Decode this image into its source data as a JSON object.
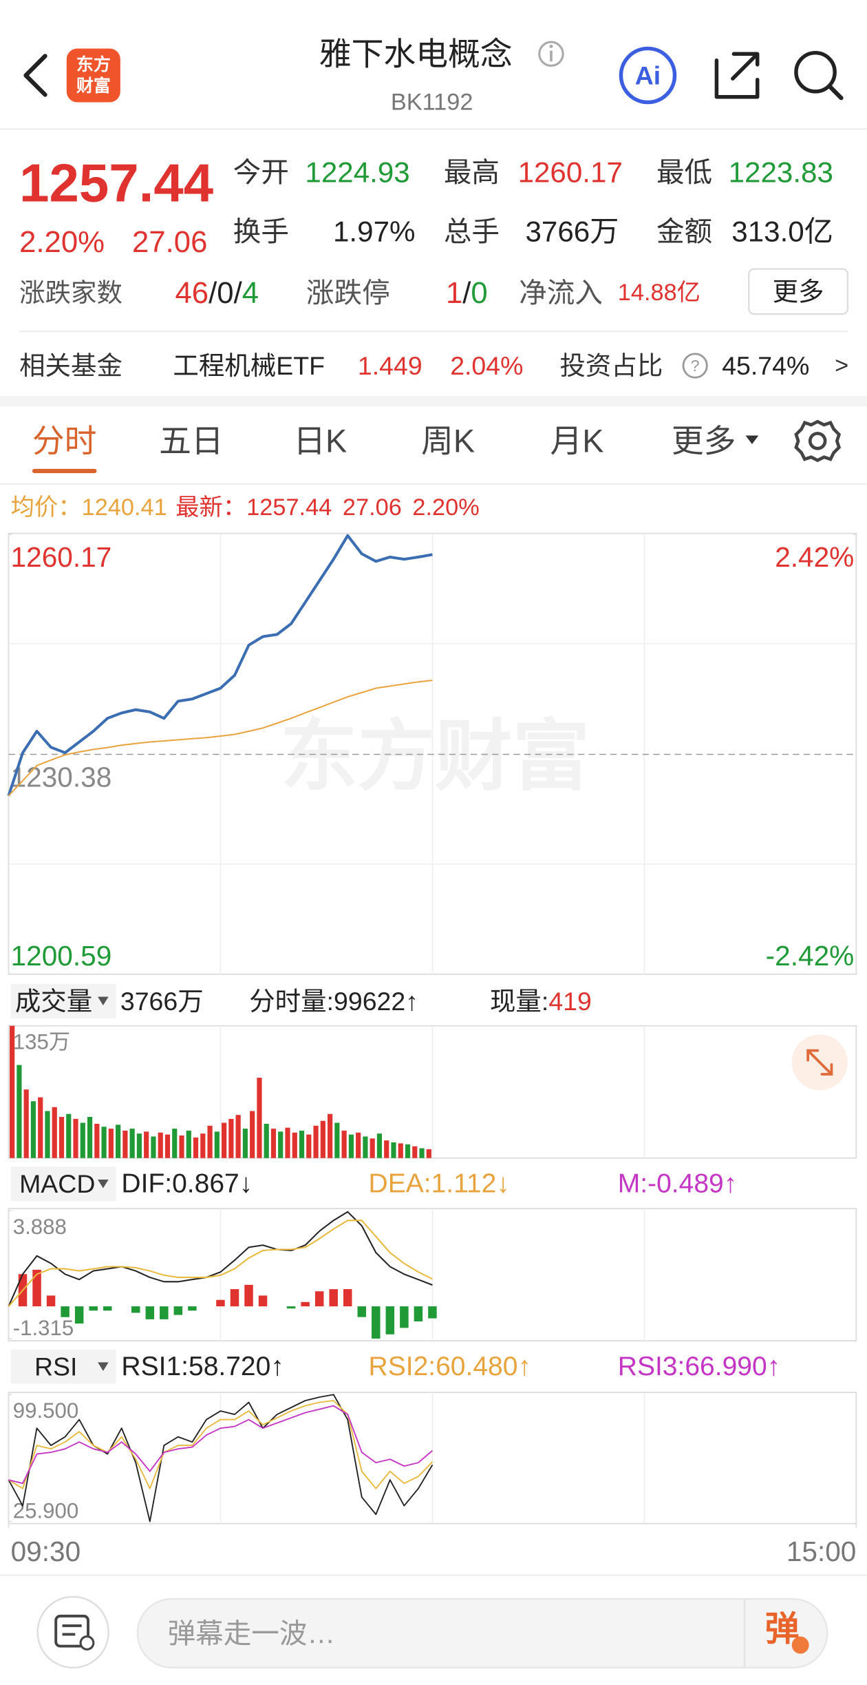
{
  "header": {
    "title": "雅下水电概念",
    "code": "BK1192",
    "logo": [
      "东方",
      "财富"
    ],
    "ai": "Ai"
  },
  "quote": {
    "price": "1257.44",
    "change_pct": "2.20%",
    "change": "27.06",
    "stats": [
      {
        "label": "今开",
        "value": "1224.93",
        "color": "#1f9a36"
      },
      {
        "label": "最高",
        "value": "1260.17",
        "color": "#e0322e"
      },
      {
        "label": "最低",
        "value": "1223.83",
        "color": "#1f9a36"
      },
      {
        "label": "换手",
        "value": "1.97%",
        "color": "#222222"
      },
      {
        "label": "总手",
        "value": "3766万",
        "color": "#222222"
      },
      {
        "label": "金额",
        "value": "313.0亿",
        "color": "#222222"
      }
    ],
    "breadth": {
      "label": "涨跌家数",
      "up": "46",
      "sep": "/",
      "flat": "0",
      "down": "4"
    },
    "limit": {
      "label": "涨跌停",
      "up": "1",
      "sep": "/",
      "down": "0"
    },
    "netflow": {
      "label": "净流入",
      "value": "14.88亿"
    },
    "more": "更多"
  },
  "fund": {
    "label": "相关基金",
    "name": "工程机械ETF",
    "price": "1.449",
    "change": "2.04%",
    "ratio_label": "投资占比",
    "ratio_help": "?",
    "ratio": "45.74%",
    "arrow": ">"
  },
  "tabs": {
    "items": [
      "分时",
      "五日",
      "日K",
      "周K",
      "月K",
      "更多"
    ],
    "selected": 0
  },
  "summary": {
    "avg_label": "均价：",
    "avg": "1240.41",
    "last_label": "最新：",
    "last": "1257.44",
    "change": "27.06",
    "change_pct": "2.20%"
  },
  "watermark": "东方财富",
  "chart_data": [
    {
      "type": "line",
      "x": [
        0,
        4,
        8,
        12,
        16,
        20,
        24,
        28,
        32,
        36,
        40,
        44,
        48,
        52,
        56,
        60,
        64,
        68,
        72,
        76,
        80,
        84,
        88,
        92,
        96,
        100,
        104,
        108,
        112,
        116,
        120
      ],
      "xlim": [
        0,
        240
      ],
      "xticks": [
        {
          "value": 0,
          "label": "09:30"
        },
        {
          "value": 240,
          "label": "15:00"
        }
      ],
      "series": [
        {
          "color": "#3b6db3",
          "values": [
            1224.77,
            1230.6,
            1233.51,
            1231.33,
            1230.6,
            1232.06,
            1233.51,
            1235.26,
            1235.99,
            1236.43,
            1236.13,
            1235.26,
            1237.59,
            1237.88,
            1238.61,
            1239.34,
            1241.09,
            1245.17,
            1246.33,
            1246.62,
            1248.08,
            1250.99,
            1253.9,
            1256.82,
            1260.02,
            1257.55,
            1256.53,
            1257.11,
            1256.82,
            1257.11,
            1257.44
          ]
        },
        {
          "color": "#e8a33c",
          "values": [
            1224.77,
            1226.8,
            1228.85,
            1229.6,
            1230.31,
            1230.7,
            1231.04,
            1231.3,
            1231.62,
            1231.85,
            1232.06,
            1232.2,
            1232.35,
            1232.5,
            1232.64,
            1232.85,
            1233.08,
            1233.5,
            1233.95,
            1234.6,
            1235.26,
            1236.0,
            1236.72,
            1237.45,
            1238.17,
            1238.75,
            1239.34,
            1239.63,
            1239.92,
            1240.2,
            1240.41
          ]
        }
      ],
      "ylim": [
        1200.59,
        1260.17
      ],
      "yticks": [
        1200.59,
        1230.38,
        1260.17
      ],
      "tick_colors": [
        "#1f9a36",
        "#888888",
        "#e0322e"
      ],
      "y2lim": [
        -2.42,
        2.42
      ],
      "y2ticks": [
        {
          "value": -2.42,
          "label": "-2.42%"
        },
        {
          "value": 2.42,
          "label": "2.42%"
        }
      ]
    },
    {
      "type": "bar",
      "title": "成交量",
      "total": "3766万",
      "minute": "分时量:99622↑",
      "now_label": "现量:",
      "now": "419",
      "x": [
        0,
        2,
        4,
        6,
        8,
        10,
        12,
        14,
        16,
        18,
        20,
        22,
        24,
        26,
        28,
        30,
        32,
        34,
        36,
        38,
        40,
        42,
        44,
        46,
        48,
        50,
        52,
        54,
        56,
        58,
        60,
        62,
        64,
        66,
        68,
        70,
        72,
        74,
        76,
        78,
        80,
        82,
        84,
        86,
        88,
        90,
        92,
        94,
        96,
        98,
        100,
        102,
        104,
        106,
        108,
        110,
        112,
        114,
        116,
        118
      ],
      "xlim": [
        0,
        240
      ],
      "values": [
        135,
        95,
        70,
        58,
        62,
        48,
        52,
        42,
        45,
        40,
        36,
        42,
        35,
        32,
        30,
        34,
        28,
        30,
        25,
        27,
        22,
        26,
        24,
        30,
        23,
        28,
        21,
        25,
        33,
        27,
        36,
        40,
        44,
        30,
        48,
        82,
        35,
        30,
        27,
        31,
        26,
        28,
        24,
        33,
        38,
        45,
        36,
        28,
        24,
        26,
        22,
        20,
        25,
        18,
        16,
        15,
        14,
        12,
        10,
        9
      ],
      "colors": [
        "#e0322e",
        "#1f9a36",
        "#e0322e",
        "#1f9a36",
        "#e0322e",
        "#1f9a36",
        "#e0322e",
        "#e0322e",
        "#1f9a36",
        "#e0322e",
        "#1f9a36",
        "#1f9a36",
        "#e0322e",
        "#1f9a36",
        "#e0322e",
        "#1f9a36",
        "#e0322e",
        "#1f9a36",
        "#1f9a36",
        "#e0322e",
        "#1f9a36",
        "#e0322e",
        "#e0322e",
        "#1f9a36",
        "#e0322e",
        "#1f9a36",
        "#e0322e",
        "#e0322e",
        "#e0322e",
        "#1f9a36",
        "#e0322e",
        "#e0322e",
        "#e0322e",
        "#1f9a36",
        "#e0322e",
        "#e0322e",
        "#1f9a36",
        "#e0322e",
        "#1f9a36",
        "#e0322e",
        "#e0322e",
        "#1f9a36",
        "#e0322e",
        "#e0322e",
        "#e0322e",
        "#e0322e",
        "#1f9a36",
        "#e0322e",
        "#1f9a36",
        "#e0322e",
        "#1f9a36",
        "#e0322e",
        "#1f9a36",
        "#e0322e",
        "#1f9a36",
        "#e0322e",
        "#1f9a36",
        "#e0322e",
        "#1f9a36",
        "#e0322e"
      ],
      "ylim": [
        0,
        135
      ],
      "yticks": [
        {
          "value": 135,
          "label": "135万"
        }
      ]
    },
    {
      "type": "macd",
      "title": "MACD",
      "x": [
        0,
        4,
        8,
        12,
        16,
        20,
        24,
        28,
        32,
        36,
        40,
        44,
        48,
        52,
        56,
        60,
        64,
        68,
        72,
        76,
        80,
        84,
        88,
        92,
        96,
        100,
        104,
        108,
        112,
        116,
        120
      ],
      "xlim": [
        0,
        240
      ],
      "series": [
        {
          "label": "DIF:0.867↓",
          "color": "#222222",
          "values": [
            -0.003,
            1.308,
            2.052,
            1.746,
            1.308,
            1.09,
            1.44,
            1.527,
            1.614,
            1.44,
            1.177,
            1.002,
            1.002,
            1.09,
            1.177,
            1.396,
            1.877,
            2.401,
            2.489,
            2.314,
            2.27,
            2.489,
            3.057,
            3.494,
            3.844,
            3.276,
            2.183,
            1.614,
            1.308,
            1.09,
            0.867
          ]
        },
        {
          "label": "DEA:1.112↓",
          "color": "#e8b93c",
          "values": [
            -0.003,
            0.653,
            1.308,
            1.527,
            1.527,
            1.44,
            1.527,
            1.614,
            1.614,
            1.571,
            1.44,
            1.265,
            1.177,
            1.177,
            1.177,
            1.265,
            1.527,
            1.964,
            2.27,
            2.314,
            2.314,
            2.401,
            2.751,
            3.145,
            3.494,
            3.494,
            2.839,
            2.183,
            1.746,
            1.396,
            1.112
          ]
        },
        {
          "label": "M:-0.489↑",
          "color": "#c535c5",
          "up_color": "#e0322e",
          "down_color": "#1f9a36",
          "values": [
            0,
            1.31,
            1.488,
            0.438,
            -0.438,
            -0.7,
            -0.174,
            -0.174,
            0,
            -0.262,
            -0.526,
            -0.526,
            -0.35,
            -0.174,
            0,
            0.262,
            0.7,
            0.874,
            0.438,
            0,
            -0.088,
            0.176,
            0.612,
            0.698,
            0.7,
            -0.436,
            -1.312,
            -1.138,
            -0.876,
            -0.612,
            -0.489
          ]
        }
      ],
      "ylim": [
        -1.315,
        3.888
      ],
      "yticks": [
        -1.315,
        3.888
      ]
    },
    {
      "type": "line",
      "title": "RSI",
      "x": [
        0,
        4,
        8,
        12,
        16,
        20,
        24,
        28,
        32,
        36,
        40,
        44,
        48,
        52,
        56,
        60,
        64,
        68,
        72,
        76,
        80,
        84,
        88,
        92,
        96,
        100,
        104,
        108,
        112,
        116,
        120
      ],
      "xlim": [
        0,
        240
      ],
      "series": [
        {
          "label": "RSI1:58.720↑",
          "color": "#222222",
          "values": [
            50,
            35,
            80,
            70,
            75,
            85,
            70,
            65,
            80,
            60,
            25.9,
            70,
            75,
            72,
            85,
            90,
            88,
            95,
            80,
            88,
            92,
            96,
            98,
            99.5,
            85,
            40,
            30,
            50,
            35,
            45,
            58.72
          ]
        },
        {
          "label": "RSI2:60.480↑",
          "color": "#e8b93c",
          "values": [
            50,
            45,
            70,
            68,
            72,
            78,
            70,
            66,
            75,
            62,
            45,
            66,
            70,
            70,
            80,
            85,
            85,
            90,
            82,
            86,
            90,
            93,
            95,
            96,
            88,
            55,
            45,
            55,
            48,
            52,
            60.48
          ]
        },
        {
          "label": "RSI3:66.990↑",
          "color": "#c535c5",
          "values": [
            50,
            48,
            65,
            66,
            68,
            72,
            68,
            66,
            72,
            65,
            55,
            66,
            68,
            69,
            76,
            80,
            81,
            85,
            80,
            83,
            86,
            89,
            91,
            93,
            88,
            66,
            60,
            62,
            58,
            60,
            66.99
          ]
        }
      ],
      "ylim": [
        25.9,
        99.5
      ],
      "yticks": [
        {
          "value": 25.9,
          "label": "25.900"
        },
        {
          "value": 99.5,
          "label": "99.500"
        }
      ]
    }
  ],
  "footer": {
    "placeholder": "弹幕走一波…",
    "button": "弹"
  }
}
